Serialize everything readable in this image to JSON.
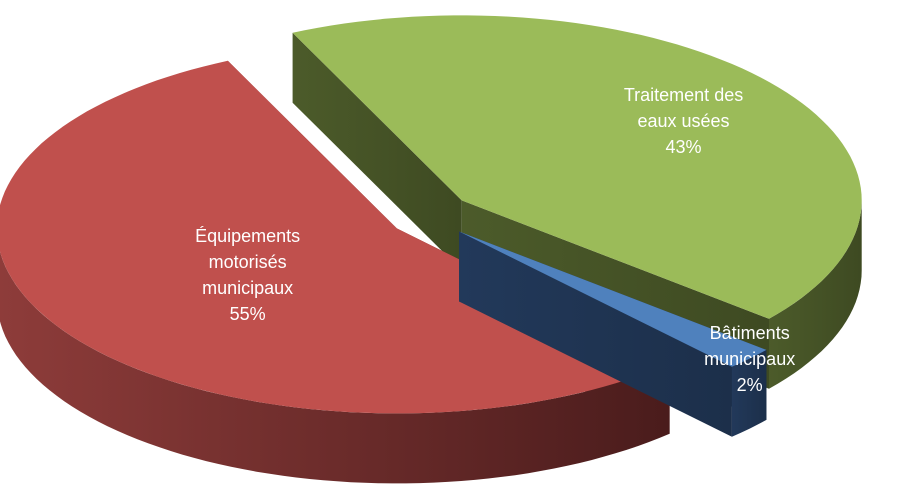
{
  "chart_data": {
    "type": "pie",
    "categories": [
      "Équipements motorisés municipaux",
      "Traitement des eaux usées",
      "Bâtiments municipaux"
    ],
    "values": [
      55,
      43,
      2
    ],
    "value_labels": [
      "55%",
      "43%",
      "2%"
    ],
    "colors": [
      "#c0504d",
      "#9bbb59",
      "#4f81bd"
    ]
  }
}
